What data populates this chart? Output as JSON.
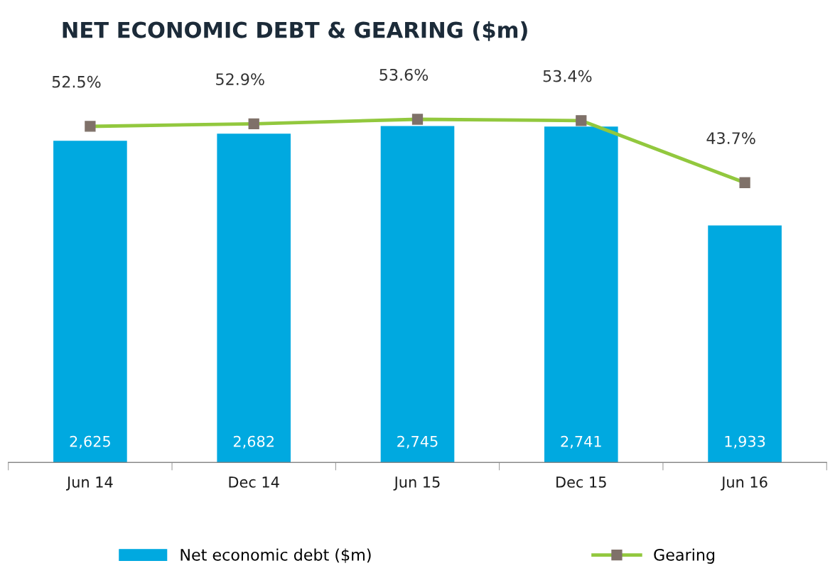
{
  "chart_data": {
    "type": "bar",
    "title": "NET ECONOMIC DEBT & GEARING ($m)",
    "categories": [
      "Jun 14",
      "Dec 14",
      "Jun 15",
      "Dec 15",
      "Jun 16"
    ],
    "series": [
      {
        "name": "Net economic debt ($m)",
        "color": "#00a9e0",
        "values": [
          2625,
          2682,
          2745,
          2741,
          1933
        ],
        "value_labels": [
          "2,625",
          "2,682",
          "2,745",
          "2,741",
          "1,933"
        ]
      },
      {
        "name": "Gearing",
        "type": "line",
        "axis": "y2",
        "color": "#92c83e",
        "values": [
          52.5,
          52.9,
          53.6,
          53.4,
          43.7
        ],
        "value_labels": [
          "52.5%",
          "52.9%",
          "53.6%",
          "53.4%",
          "43.7%"
        ]
      }
    ],
    "tick_labels": "x",
    "data_labels": true,
    "legend": "bottom",
    "marker": "square",
    "line_style": "solid",
    "grid": false
  }
}
